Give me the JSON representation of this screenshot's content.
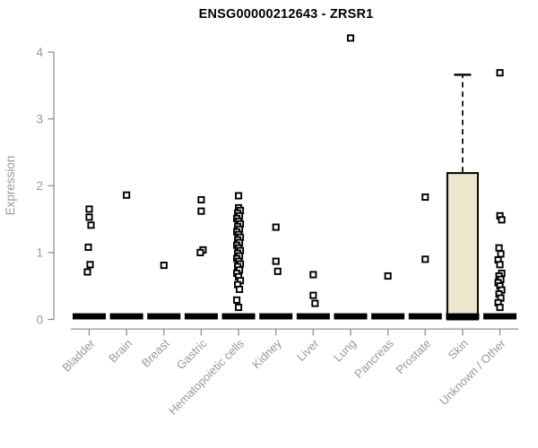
{
  "chart_data": {
    "type": "boxplot",
    "title": "ENSG00000212643 - ZRSR1",
    "ylabel": "Expression",
    "ylim": [
      0,
      4
    ],
    "yticks": [
      0,
      1,
      2,
      3,
      4
    ],
    "grid": false,
    "legend": false,
    "categories": [
      "Bladder",
      "Brain",
      "Breast",
      "Gastric",
      "Hematopoietic cells",
      "Kidney",
      "Liver",
      "Lung",
      "Pancreas",
      "Prostate",
      "Skin",
      "Unknown / Other"
    ],
    "boxes": [
      {
        "category": "Bladder",
        "q1": 0,
        "median": 0,
        "q3": 0
      },
      {
        "category": "Brain",
        "q1": 0,
        "median": 0,
        "q3": 0
      },
      {
        "category": "Breast",
        "q1": 0,
        "median": 0,
        "q3": 0
      },
      {
        "category": "Gastric",
        "q1": 0,
        "median": 0,
        "q3": 0
      },
      {
        "category": "Hematopoietic cells",
        "q1": 0,
        "median": 0,
        "q3": 0
      },
      {
        "category": "Kidney",
        "q1": 0,
        "median": 0,
        "q3": 0
      },
      {
        "category": "Liver",
        "q1": 0,
        "median": 0,
        "q3": 0
      },
      {
        "category": "Lung",
        "q1": 0,
        "median": 0,
        "q3": 0
      },
      {
        "category": "Pancreas",
        "q1": 0,
        "median": 0,
        "q3": 0
      },
      {
        "category": "Prostate",
        "q1": 0,
        "median": 0,
        "q3": 0
      },
      {
        "category": "Skin",
        "q1": 0,
        "median": 0,
        "q3": 2.19,
        "whisker_high": 3.66
      },
      {
        "category": "Unknown / Other",
        "q1": 0,
        "median": 0,
        "q3": 0
      }
    ],
    "points": [
      [
        1.65,
        1.53,
        1.41,
        1.08,
        0.82,
        0.71
      ],
      [
        1.86
      ],
      [
        0.81
      ],
      [
        1.79,
        1.62,
        1.04,
        1.0
      ],
      [
        1.85,
        1.67,
        1.63,
        1.59,
        1.55,
        1.51,
        1.47,
        1.43,
        1.39,
        1.35,
        1.31,
        1.27,
        1.23,
        1.19,
        1.15,
        1.11,
        1.07,
        1.03,
        0.99,
        0.95,
        0.91,
        0.87,
        0.83,
        0.79,
        0.74,
        0.69,
        0.64,
        0.58,
        0.52,
        0.45,
        0.29,
        0.18
      ],
      [
        1.38,
        0.87,
        0.72
      ],
      [
        0.67,
        0.36,
        0.24
      ],
      [
        4.21
      ],
      [
        0.65
      ],
      [
        1.83,
        0.9
      ],
      [],
      [
        3.69,
        1.55,
        1.49,
        1.07,
        0.98,
        0.89,
        0.82,
        0.69,
        0.65,
        0.6,
        0.55,
        0.5,
        0.44,
        0.38,
        0.32,
        0.25,
        0.18
      ]
    ],
    "colors": {
      "box_fill": "#ece8cd",
      "box_stroke": "#000000",
      "axis": "#878787",
      "text": "#999999",
      "point_stroke": "#000000",
      "point_fill": "#ffffff",
      "title": "#000000",
      "background": "#ffffff"
    }
  }
}
